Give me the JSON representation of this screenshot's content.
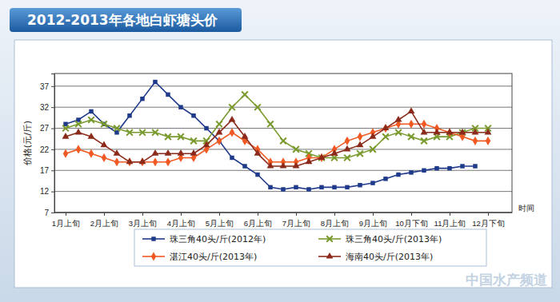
{
  "chart_data": {
    "type": "line",
    "title": "2012-2013年各地白虾塘头价",
    "y_label": "价格(元/斤)",
    "x_label": "时间",
    "categories": [
      "1月上旬",
      null,
      null,
      "2月上旬",
      null,
      null,
      "3月上旬",
      null,
      null,
      "4月上旬",
      null,
      null,
      "5月上旬",
      null,
      null,
      "6月上旬",
      null,
      null,
      "7月上旬",
      null,
      null,
      "8月上旬",
      null,
      null,
      "9月上旬",
      null,
      null,
      "10月下旬",
      null,
      null,
      "11月上旬",
      null,
      null,
      "12月下旬"
    ],
    "series": [
      {
        "name": "珠三角40头/斤(2012年)",
        "color": "#1f3a8a",
        "marker": "square",
        "values": [
          28,
          29,
          31,
          28,
          26,
          30,
          34,
          38,
          35,
          32,
          30,
          27,
          24,
          20,
          18,
          16,
          13,
          12.5,
          13,
          12.5,
          13,
          13,
          13,
          13.5,
          14,
          15,
          16,
          16.5,
          17,
          17.5,
          17.5,
          18,
          18,
          null
        ]
      },
      {
        "name": "珠三角40头/斤(2013年)",
        "color": "#7a9a2e",
        "marker": "x",
        "values": [
          27,
          28,
          29,
          28,
          27,
          26,
          26,
          26,
          25,
          25,
          24,
          24,
          28,
          32,
          35,
          32,
          28,
          24,
          22,
          21,
          20,
          20,
          20,
          21,
          22,
          25,
          26,
          25,
          24,
          25,
          25,
          26,
          27,
          27
        ]
      },
      {
        "name": "湛江40头/斤(2013年)",
        "color": "#f05a22",
        "marker": "diamond",
        "values": [
          21,
          22,
          21,
          20,
          19,
          19,
          19,
          19,
          19,
          20,
          20,
          22,
          24,
          26,
          24,
          22,
          19,
          19,
          19,
          20,
          20,
          22,
          24,
          25,
          26,
          27,
          28,
          28,
          28,
          27,
          26,
          25,
          24,
          24
        ]
      },
      {
        "name": "海南40头/斤(2013年)",
        "color": "#8b2a1a",
        "marker": "triangle",
        "values": [
          25,
          26,
          25,
          23,
          21,
          19,
          19,
          21,
          21,
          21,
          21,
          23,
          26,
          29,
          25,
          21,
          18,
          18,
          18,
          19,
          20,
          21,
          22,
          23,
          25,
          27,
          29,
          31,
          26,
          26,
          26,
          26,
          26,
          26
        ]
      }
    ],
    "ylim": [
      7,
      40
    ],
    "yticks": [
      7,
      12,
      17,
      22,
      27,
      32,
      37
    ],
    "grid": true,
    "legend": "bottom",
    "annotations": [
      "中国水产频道"
    ]
  }
}
